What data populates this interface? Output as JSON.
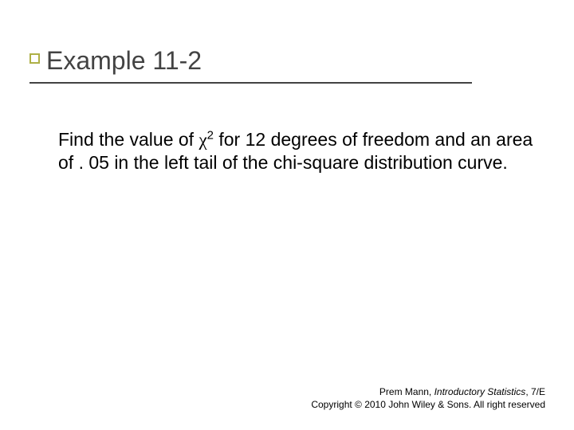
{
  "slide": {
    "title": "Example 11-2",
    "accent_color": "#aeb046",
    "title_color": "#434343",
    "title_fontsize": 32,
    "underline_color": "#434343",
    "body": {
      "pre": "Find the value of ",
      "chi": "χ",
      "sup": "2",
      "post": " for 12 degrees of freedom and an area of . 05 in the left tail of the chi-square distribution curve.",
      "fontsize": 23,
      "color": "#000000"
    },
    "footer": {
      "author": "Prem Mann, ",
      "book_title": "Introductory Statistics",
      "edition": ", 7/E",
      "copyright": "Copyright © 2010 John Wiley & Sons. All right reserved",
      "fontsize": 12
    }
  }
}
